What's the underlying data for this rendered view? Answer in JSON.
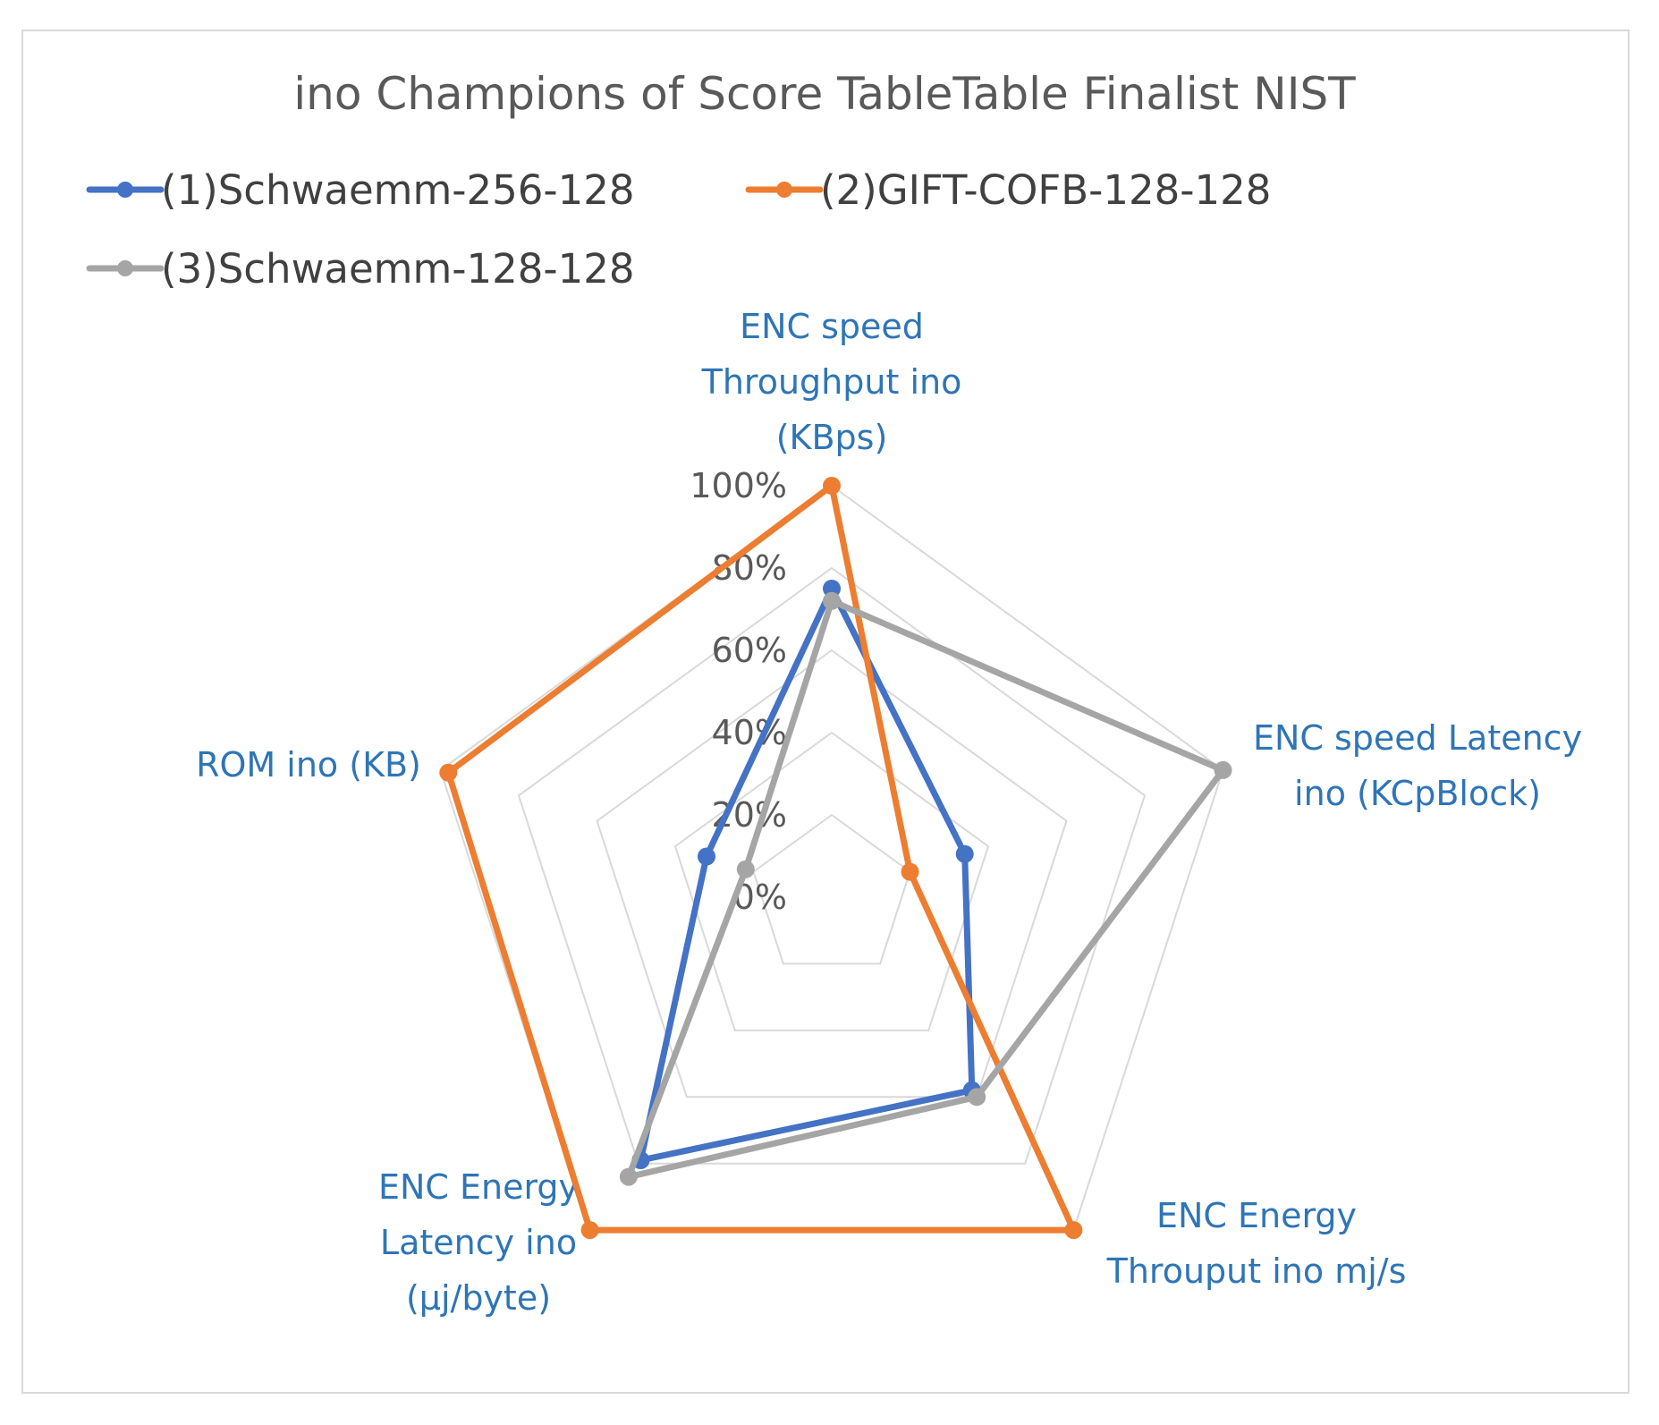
{
  "chart_data": {
    "type": "radar",
    "title": "ino  Champions of Score TableTable Finalist NIST",
    "axes": [
      [
        "ENC speed",
        "Throughput ino",
        "(KBps)"
      ],
      [
        "ENC speed Latency",
        "ino (KCpBlock)"
      ],
      [
        "ENC Energy",
        "Throuput ino mj/s"
      ],
      [
        "ENC Energy",
        "Latency ino",
        "(μj/byte)"
      ],
      [
        "ROM ino (KB)"
      ]
    ],
    "ticks": [
      "0%",
      "20%",
      "40%",
      "60%",
      "80%",
      "100%"
    ],
    "range": [
      0,
      1
    ],
    "grid": true,
    "legend_position": "top",
    "series": [
      {
        "name": "(1)Schwaemm-256-128",
        "color": "#4472c4",
        "values": [
          0.75,
          0.34,
          0.58,
          0.79,
          0.32
        ]
      },
      {
        "name": "(2)GIFT-COFB-128-128",
        "color": "#ed7d31",
        "values": [
          1.0,
          0.2,
          1.0,
          1.0,
          0.98
        ]
      },
      {
        "name": "(3)Schwaemm-128-128",
        "color": "#a5a5a5",
        "values": [
          0.72,
          1.0,
          0.6,
          0.84,
          0.22
        ]
      }
    ]
  }
}
